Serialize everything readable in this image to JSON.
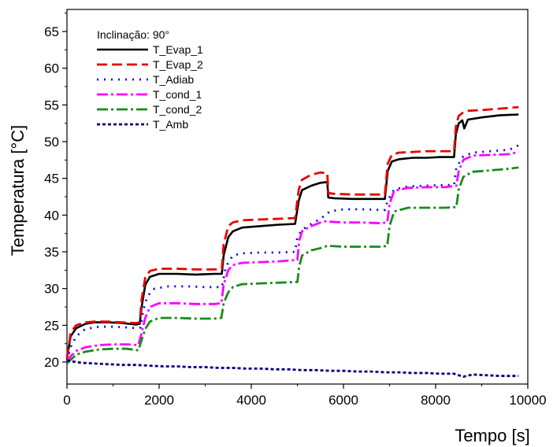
{
  "chart_data": {
    "type": "line",
    "xlabel": "Tempo [s]",
    "ylabel": "Temperatura [°C]",
    "xlim": [
      0,
      10000
    ],
    "ylim": [
      17,
      68
    ],
    "xticks": [
      0,
      2000,
      4000,
      6000,
      8000,
      10000
    ],
    "yticks": [
      20,
      25,
      30,
      35,
      40,
      45,
      50,
      55,
      60,
      65
    ],
    "grid": false,
    "legend": {
      "title": "Inclinação: 90°",
      "placement": "top-left"
    },
    "series": [
      {
        "name": "T_Evap_1",
        "color": "#000000",
        "dash": "solid",
        "x": [
          0,
          80,
          200,
          400,
          600,
          900,
          1200,
          1500,
          1580,
          1620,
          1700,
          1800,
          2000,
          2400,
          2800,
          3200,
          3360,
          3400,
          3500,
          3600,
          3800,
          4200,
          4600,
          4950,
          5030,
          5100,
          5300,
          5500,
          5650,
          5670,
          5800,
          6200,
          6600,
          6900,
          6960,
          7050,
          7200,
          7500,
          7800,
          8100,
          8400,
          8440,
          8500,
          8580,
          8620,
          8700,
          9000,
          9400,
          9800
        ],
        "y": [
          20.5,
          23.5,
          24.6,
          25.2,
          25.4,
          25.4,
          25.3,
          25.1,
          25.2,
          27.5,
          30.5,
          31.6,
          32.0,
          32.0,
          31.9,
          32.0,
          32.0,
          34.5,
          37.0,
          37.8,
          38.3,
          38.5,
          38.7,
          38.8,
          42.0,
          43.4,
          44.0,
          44.4,
          44.5,
          42.4,
          42.3,
          42.2,
          42.2,
          42.2,
          46.0,
          47.3,
          47.6,
          47.8,
          47.8,
          47.9,
          47.9,
          51.0,
          52.5,
          52.9,
          51.8,
          53.0,
          53.3,
          53.6,
          53.7
        ]
      },
      {
        "name": "T_Evap_2",
        "color": "#e80000",
        "dash": "13,6",
        "x": [
          0,
          80,
          200,
          400,
          600,
          900,
          1200,
          1500,
          1580,
          1620,
          1700,
          1800,
          2000,
          2400,
          2800,
          3200,
          3360,
          3400,
          3500,
          3600,
          3800,
          4200,
          4600,
          4950,
          5030,
          5100,
          5300,
          5500,
          5650,
          5670,
          5800,
          6200,
          6600,
          6900,
          6960,
          7050,
          7200,
          7500,
          7800,
          8100,
          8400,
          8440,
          8500,
          8600,
          8700,
          9000,
          9400,
          9800
        ],
        "y": [
          20.5,
          24.0,
          25.0,
          25.4,
          25.5,
          25.5,
          25.4,
          25.3,
          25.4,
          28.5,
          31.5,
          32.4,
          32.7,
          32.7,
          32.6,
          32.6,
          32.7,
          36.0,
          38.5,
          39.0,
          39.3,
          39.4,
          39.5,
          39.6,
          43.5,
          44.8,
          45.5,
          45.8,
          45.7,
          43.0,
          42.9,
          42.8,
          42.8,
          42.8,
          47.0,
          48.2,
          48.5,
          48.6,
          48.7,
          48.7,
          48.7,
          52.0,
          53.5,
          54.0,
          54.2,
          54.3,
          54.5,
          54.7
        ]
      },
      {
        "name": "T_Adiab",
        "color": "#0000ff",
        "dash": "2,7",
        "x": [
          0,
          80,
          200,
          400,
          700,
          1000,
          1300,
          1550,
          1600,
          1650,
          1750,
          1900,
          2200,
          2600,
          3000,
          3300,
          3360,
          3450,
          3600,
          3800,
          4200,
          4600,
          4950,
          5000,
          5100,
          5300,
          5500,
          5650,
          5700,
          6000,
          6400,
          6800,
          6900,
          6960,
          7100,
          7400,
          7800,
          8200,
          8400,
          8450,
          8600,
          8800,
          9200,
          9600,
          9800
        ],
        "y": [
          20.2,
          22.0,
          23.5,
          24.5,
          24.8,
          24.8,
          24.7,
          24.6,
          24.7,
          27.0,
          29.0,
          30.0,
          30.3,
          30.3,
          30.2,
          30.2,
          30.2,
          33.0,
          34.5,
          34.8,
          34.9,
          34.9,
          35.0,
          37.0,
          38.0,
          38.8,
          39.5,
          40.2,
          40.5,
          40.8,
          40.8,
          40.7,
          40.7,
          42.0,
          43.5,
          43.9,
          44.0,
          44.1,
          44.1,
          46.5,
          48.0,
          48.5,
          48.7,
          48.9,
          49.5
        ]
      },
      {
        "name": "T_cond_1",
        "color": "#ff00ff",
        "dash": "14,4,3,4",
        "x": [
          0,
          80,
          200,
          400,
          700,
          1000,
          1300,
          1550,
          1620,
          1700,
          1800,
          2000,
          2400,
          2800,
          3200,
          3350,
          3400,
          3500,
          3600,
          3800,
          4200,
          4600,
          5000,
          5040,
          5100,
          5300,
          5500,
          5650,
          5700,
          6000,
          6400,
          6800,
          6950,
          7000,
          7100,
          7400,
          7800,
          8200,
          8450,
          8500,
          8600,
          8800,
          9200,
          9600,
          9800
        ],
        "y": [
          20.0,
          20.8,
          21.5,
          22.0,
          22.3,
          22.4,
          22.4,
          22.3,
          24.0,
          26.0,
          27.5,
          28.0,
          28.0,
          27.9,
          27.9,
          28.0,
          30.5,
          32.5,
          33.2,
          33.5,
          33.6,
          33.7,
          33.9,
          36.5,
          37.8,
          38.5,
          39.0,
          39.2,
          39.1,
          39.0,
          39.0,
          38.9,
          39.0,
          41.5,
          43.3,
          43.7,
          43.8,
          43.8,
          44.0,
          46.0,
          47.5,
          48.1,
          48.2,
          48.3,
          48.6
        ]
      },
      {
        "name": "T_cond_2",
        "color": "#1a8c1a",
        "dash": "14,4,3,4",
        "x": [
          0,
          80,
          200,
          400,
          700,
          1000,
          1300,
          1550,
          1620,
          1700,
          1800,
          2000,
          2400,
          2800,
          3200,
          3350,
          3400,
          3500,
          3600,
          3800,
          4200,
          4600,
          5000,
          5040,
          5100,
          5300,
          5500,
          5650,
          5700,
          6000,
          6400,
          6800,
          6950,
          7000,
          7100,
          7400,
          7800,
          8200,
          8450,
          8500,
          8600,
          8800,
          9200,
          9600,
          9800
        ],
        "y": [
          19.8,
          20.3,
          21.0,
          21.4,
          21.7,
          21.8,
          21.8,
          21.6,
          23.0,
          24.5,
          25.5,
          26.0,
          26.0,
          25.9,
          25.9,
          26.0,
          28.0,
          29.5,
          30.2,
          30.6,
          30.7,
          30.8,
          30.9,
          33.0,
          34.5,
          35.2,
          35.5,
          35.8,
          35.8,
          35.7,
          35.7,
          35.7,
          35.8,
          38.5,
          40.5,
          41.0,
          41.0,
          41.0,
          41.1,
          43.5,
          45.2,
          45.9,
          46.1,
          46.3,
          46.5
        ]
      },
      {
        "name": "T_Amb",
        "color": "#000080",
        "dash": "4,3",
        "x": [
          0,
          300,
          600,
          900,
          1200,
          1500,
          1800,
          2100,
          2400,
          2700,
          3000,
          3300,
          3600,
          3900,
          4200,
          4500,
          4800,
          5100,
          5400,
          5700,
          6000,
          6300,
          6600,
          6900,
          7200,
          7500,
          7800,
          8100,
          8400,
          8600,
          8800,
          9100,
          9400,
          9800
        ],
        "y": [
          20.2,
          19.9,
          19.8,
          19.7,
          19.6,
          19.6,
          19.5,
          19.4,
          19.4,
          19.3,
          19.3,
          19.2,
          19.2,
          19.1,
          19.1,
          19.0,
          19.0,
          18.9,
          18.9,
          18.8,
          18.8,
          18.7,
          18.7,
          18.6,
          18.6,
          18.5,
          18.5,
          18.4,
          18.4,
          18.0,
          18.3,
          18.2,
          18.1,
          18.1
        ]
      }
    ]
  }
}
